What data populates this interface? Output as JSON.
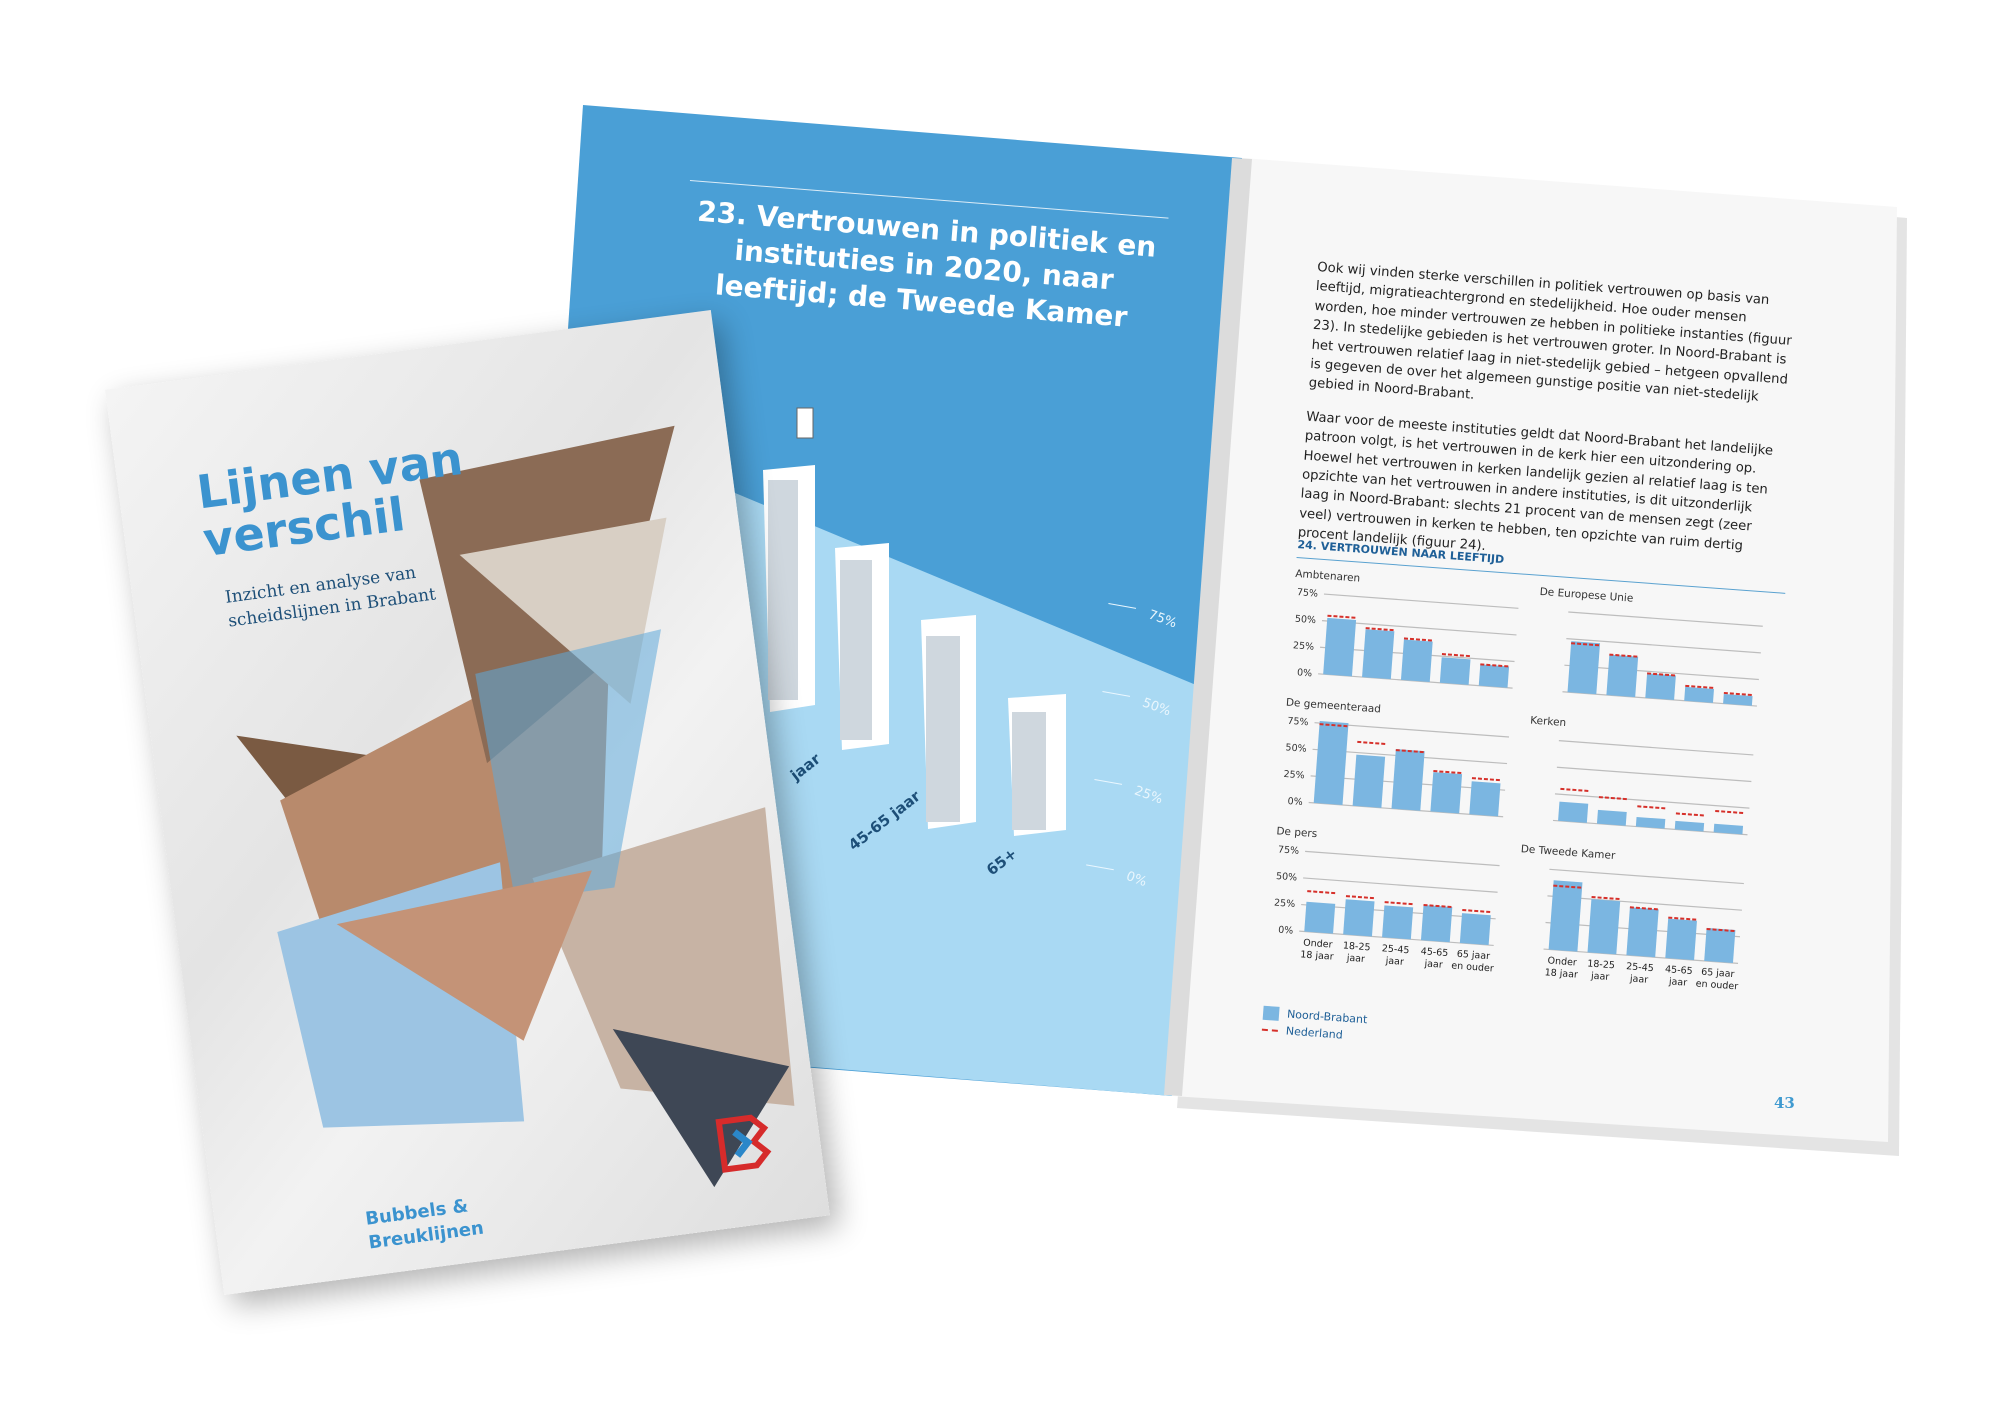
{
  "cover": {
    "title": "Lijnen van verschil",
    "subtitle_line1": "Inzicht en analyse van",
    "subtitle_line2": "scheidslijnen in Brabant",
    "series_line1": "Bubbels &",
    "series_line2": "Breuklijnen",
    "logo": "red-blue-k-logo"
  },
  "left_page": {
    "title": "23. Vertrouwen in politiek en instituties in 2020, naar leeftijd; de Tweede Kamer",
    "ticks": [
      "75%",
      "50%",
      "25%",
      "0%"
    ],
    "age_labels": [
      "jaar",
      "45-65 jaar",
      "65+"
    ]
  },
  "right_page": {
    "paragraphs": [
      "Ook wij vinden sterke verschillen in politiek vertrouwen op basis van leeftijd, migratieachtergrond en stedelijkheid. Hoe ouder mensen worden, hoe minder vertrouwen ze hebben in politieke instanties (figuur 23). In stedelijke gebieden is het vertrouwen groter. In Noord-Brabant is het vertrouwen relatief laag in niet-stedelijk gebied – hetgeen opvallend is gegeven de over het algemeen gunstige positie van niet-stedelijk gebied in Noord-Brabant.",
      "Waar voor de meeste instituties geldt dat Noord-Brabant het landelijke patroon volgt, is het vertrouwen in de kerk hier een uitzondering op. Hoewel het vertrouwen in kerken landelijk gezien al relatief laag is ten opzichte van het vertrouwen in andere instituties, is dit uitzonderlijk laag in Noord-Brabant: slechts 21 procent van de mensen zegt (zeer veel) vertrouwen in kerken te hebben, ten opzichte van ruim dertig procent landelijk (figuur 24)."
    ],
    "figure_title": "24. VERTROUWEN NAAR LEEFTIJD",
    "legend": [
      "Noord-Brabant",
      "Nederland"
    ],
    "page_number": "43"
  },
  "colors": {
    "bar": "#7bb6e1",
    "national_dash": "#d6302a",
    "accent": "#3b93cf",
    "page_blue": "#4a9fd6",
    "floor_blue": "#a9d9f3"
  },
  "chart_data": [
    {
      "type": "bar",
      "title": "Ambtenaren",
      "categories": [
        "Onder 18 jaar",
        "18-25 jaar",
        "25-45 jaar",
        "45-65 jaar",
        "65 jaar en ouder"
      ],
      "yticks": [
        "75%",
        "50%",
        "25%",
        "0%"
      ],
      "ylim": [
        0,
        75
      ],
      "series": [
        {
          "name": "Noord-Brabant",
          "values": [
            53,
            45,
            38,
            24,
            20
          ]
        },
        {
          "name": "Nederland",
          "values": [
            55,
            46,
            39,
            27,
            20
          ]
        }
      ]
    },
    {
      "type": "bar",
      "title": "De Europese Unie",
      "categories": [
        "Onder 18 jaar",
        "18-25 jaar",
        "25-45 jaar",
        "45-65 jaar",
        "65 jaar en ouder"
      ],
      "yticks": [],
      "ylim": [
        0,
        75
      ],
      "series": [
        {
          "name": "Noord-Brabant",
          "values": [
            48,
            38,
            23,
            13,
            9
          ]
        },
        {
          "name": "Nederland",
          "values": [
            46,
            38,
            23,
            14,
            10
          ]
        }
      ]
    },
    {
      "type": "bar",
      "title": "De gemeenteraad",
      "categories": [
        "Onder 18 jaar",
        "18-25 jaar",
        "25-45 jaar",
        "45-65 jaar",
        "65 jaar en ouder"
      ],
      "yticks": [
        "75%",
        "50%",
        "25%",
        "0%"
      ],
      "ylim": [
        0,
        75
      ],
      "series": [
        {
          "name": "Noord-Brabant",
          "values": [
            77,
            48,
            56,
            37,
            31
          ]
        },
        {
          "name": "Nederland",
          "values": [
            74,
            60,
            55,
            38,
            34
          ]
        }
      ]
    },
    {
      "type": "bar",
      "title": "Kerken",
      "categories": [
        "Onder 18 jaar",
        "18-25 jaar",
        "25-45 jaar",
        "45-65 jaar",
        "65 jaar en ouder"
      ],
      "yticks": [],
      "ylim": [
        0,
        75
      ],
      "series": [
        {
          "name": "Noord-Brabant",
          "values": [
            18,
            13,
            9,
            8,
            8
          ]
        },
        {
          "name": "Nederland",
          "values": [
            30,
            25,
            19,
            15,
            20
          ]
        }
      ]
    },
    {
      "type": "bar",
      "title": "De pers",
      "categories": [
        "Onder 18 jaar",
        "18-25 jaar",
        "25-45 jaar",
        "45-65 jaar",
        "65 jaar en ouder"
      ],
      "yticks": [
        "75%",
        "50%",
        "25%",
        "0%"
      ],
      "ylim": [
        0,
        75
      ],
      "series": [
        {
          "name": "Noord-Brabant",
          "values": [
            28,
            33,
            30,
            33,
            28
          ]
        },
        {
          "name": "Nederland",
          "values": [
            38,
            36,
            33,
            33,
            31
          ]
        }
      ]
    },
    {
      "type": "bar",
      "title": "De Tweede Kamer",
      "categories": [
        "Onder 18 jaar",
        "18-25 jaar",
        "25-45 jaar",
        "45-65 jaar",
        "65 jaar en ouder"
      ],
      "yticks": [],
      "ylim": [
        0,
        75
      ],
      "series": [
        {
          "name": "Noord-Brabant",
          "values": [
            65,
            50,
            45,
            37,
            31
          ]
        },
        {
          "name": "Nederland",
          "values": [
            60,
            52,
            45,
            38,
            30
          ]
        }
      ]
    }
  ]
}
